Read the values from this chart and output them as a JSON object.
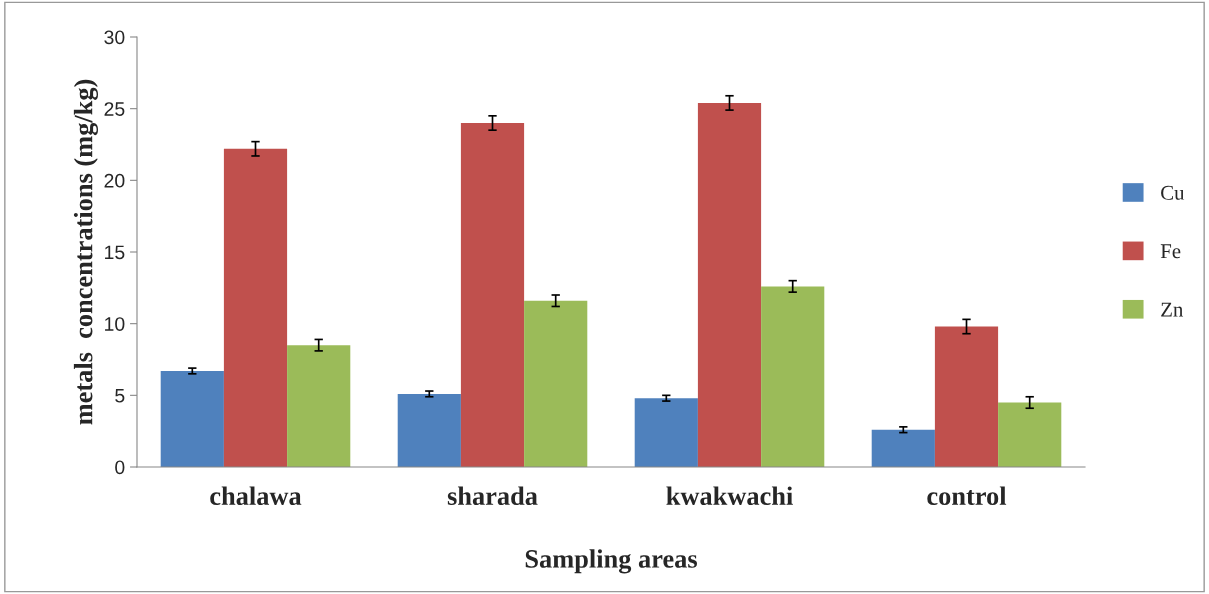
{
  "chart_data": {
    "type": "bar",
    "xlabel": "Sampling areas",
    "ylabel": "metals  concentrations (mg/kg)",
    "categories": [
      "chalawa",
      "sharada",
      "kwakwachi",
      "control"
    ],
    "series": [
      {
        "name": "Cu",
        "color": "#4f81bd",
        "values": [
          6.7,
          5.1,
          4.8,
          2.6
        ],
        "errors": [
          0.2,
          0.2,
          0.2,
          0.2
        ]
      },
      {
        "name": "Fe",
        "color": "#c0504d",
        "values": [
          22.2,
          24.0,
          25.4,
          9.8
        ],
        "errors": [
          0.5,
          0.5,
          0.5,
          0.5
        ]
      },
      {
        "name": "Zn",
        "color": "#9bbb59",
        "values": [
          8.5,
          11.6,
          12.6,
          4.5
        ],
        "errors": [
          0.4,
          0.4,
          0.4,
          0.4
        ]
      }
    ],
    "ylim": [
      0,
      30
    ],
    "yticks": [
      0,
      5,
      10,
      15,
      20,
      25,
      30
    ],
    "grid": false,
    "legend": "right"
  }
}
